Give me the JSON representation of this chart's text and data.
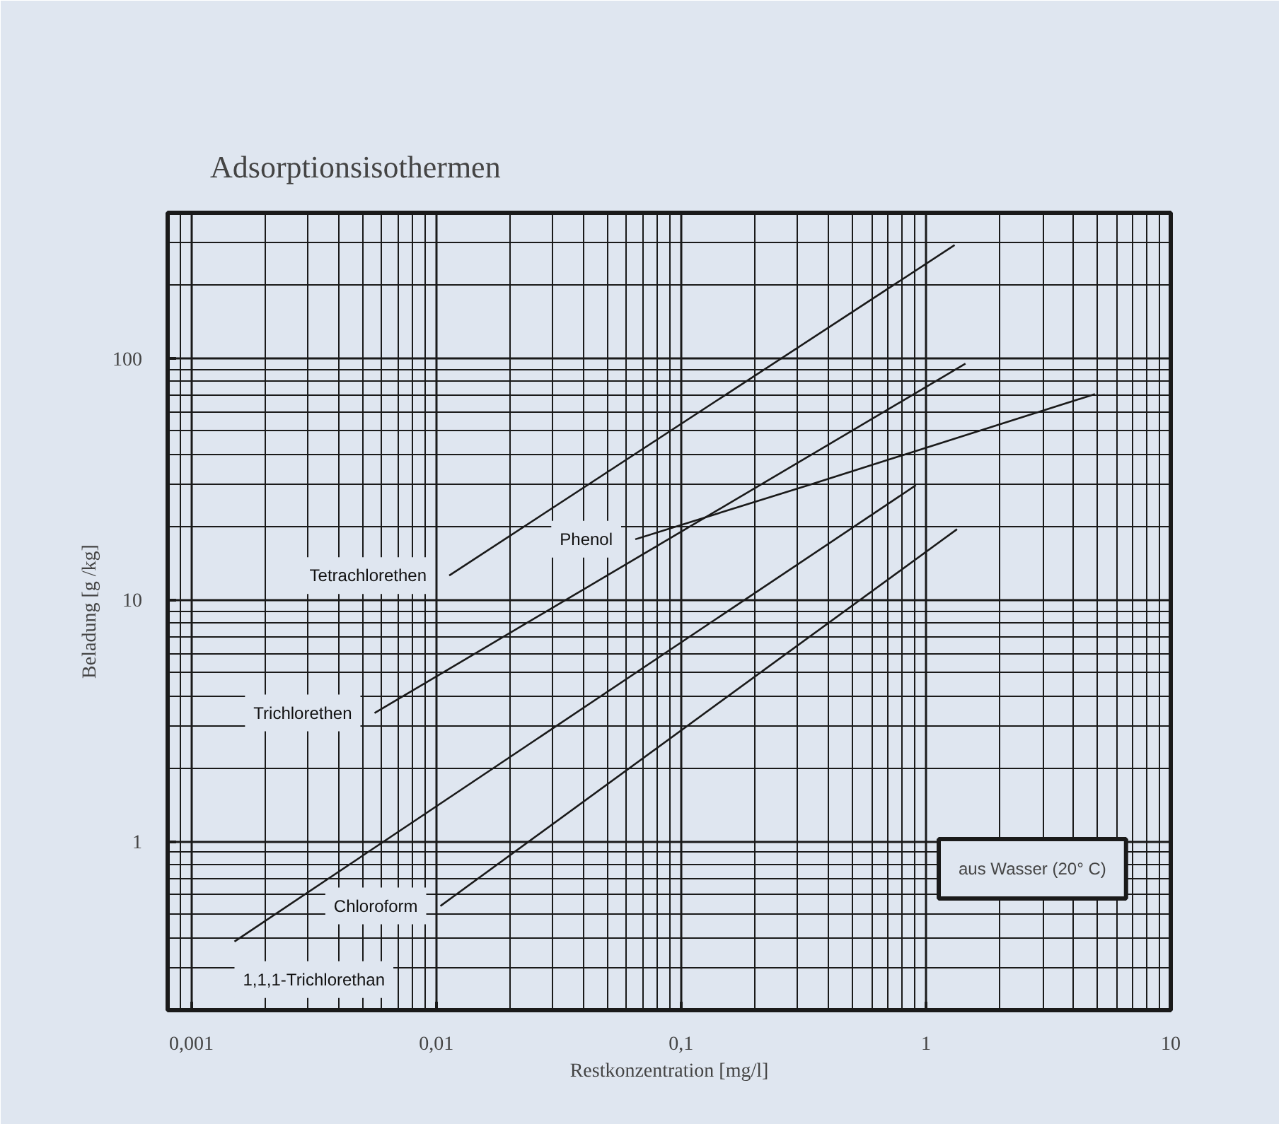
{
  "chart_data": {
    "type": "line",
    "title": "Adsorptionsisothermen",
    "xlabel": "Restkonzentration [mg/l]",
    "ylabel": "Beladung [g /kg]",
    "log": "xy",
    "grid": true,
    "marker": "none",
    "line_style": "solid",
    "xlim": [
      0.0008,
      10
    ],
    "ylim": [
      0.2,
      400
    ],
    "xticks": [
      {
        "value": 0.001,
        "label": "0,001"
      },
      {
        "value": 0.01,
        "label": "0,01"
      },
      {
        "value": 0.1,
        "label": "0,1"
      },
      1,
      10
    ],
    "yticks": [
      1,
      10,
      100
    ],
    "series": [
      {
        "name": "Tetrachlorethen",
        "color": "#1a1a1a",
        "x": [
          0.0113,
          1.31
        ],
        "values": [
          12.6,
          294
        ]
      },
      {
        "name": "Trichlorethen",
        "color": "#1a1a1a",
        "x": [
          0.0056,
          1.45
        ],
        "values": [
          3.4,
          95
        ]
      },
      {
        "name": "Phenol",
        "color": "#1a1a1a",
        "x": [
          0.065,
          0.33,
          1.55,
          4.9
        ],
        "values": [
          17.8,
          29.8,
          49,
          71
        ]
      },
      {
        "name": "1,1,1-Trichlorethan",
        "color": "#1a1a1a",
        "x": [
          0.0015,
          0.91
        ],
        "values": [
          0.385,
          29.8
        ]
      },
      {
        "name": "Chloroform",
        "color": "#1a1a1a",
        "x": [
          0.0104,
          1.34
        ],
        "values": [
          0.54,
          19.6
        ]
      }
    ],
    "annotations": [
      "aus Wasser (20° C)"
    ]
  }
}
